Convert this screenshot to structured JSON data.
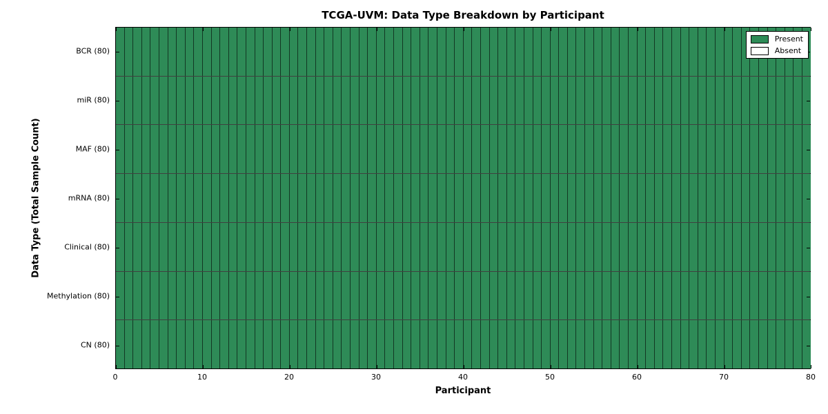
{
  "chart_data": {
    "type": "heatmap",
    "title": "TCGA-UVM: Data Type Breakdown by Participant",
    "xlabel": "Participant",
    "ylabel": "Data Type (Total Sample Count)",
    "xlim": [
      0,
      80
    ],
    "x_ticks": [
      0,
      10,
      20,
      30,
      40,
      50,
      60,
      70,
      80
    ],
    "n_participants": 80,
    "legend_position": "upper-right",
    "legend_entries": [
      {
        "label": "Present",
        "color": "#2e8b57"
      },
      {
        "label": "Absent",
        "color": "#ffffff"
      }
    ],
    "colors": {
      "present": "#2e8b57",
      "absent": "#ffffff",
      "cell_edge": "#000000",
      "axis": "#000000"
    },
    "rows": [
      {
        "label": "BCR (80)",
        "present_count": 80,
        "absent_count": 0
      },
      {
        "label": "miR (80)",
        "present_count": 80,
        "absent_count": 0
      },
      {
        "label": "MAF (80)",
        "present_count": 80,
        "absent_count": 0
      },
      {
        "label": "mRNA (80)",
        "present_count": 80,
        "absent_count": 0
      },
      {
        "label": "Clinical (80)",
        "present_count": 80,
        "absent_count": 0
      },
      {
        "label": "Methylation (80)",
        "present_count": 80,
        "absent_count": 0
      },
      {
        "label": "CN (80)",
        "present_count": 80,
        "absent_count": 0
      }
    ]
  }
}
